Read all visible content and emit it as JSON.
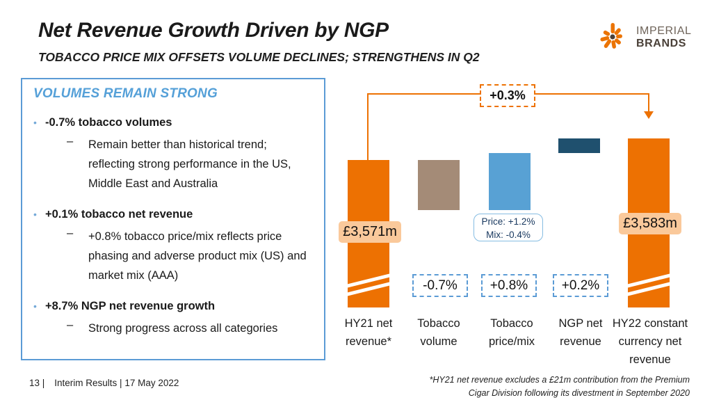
{
  "slide": {
    "title": "Net Revenue Growth Driven by NGP",
    "subtitle": "TOBACCO PRICE MIX OFFSETS VOLUME DECLINES; STRENGTHENS IN Q2"
  },
  "logo": {
    "line1": "IMPERIAL",
    "line2": "BRANDS",
    "icon_color": "#eb7405",
    "dot_color": "#4a4038"
  },
  "left_panel": {
    "heading": "VOLUMES REMAIN STRONG",
    "detail_dash": "–",
    "bullets": [
      {
        "headline": "-0.7% tobacco volumes",
        "detail": "Remain better than historical trend; reflecting strong performance in the US, Middle East and Australia"
      },
      {
        "headline": "+0.1% tobacco net revenue",
        "detail": "+0.8% tobacco price/mix reflects price phasing and adverse product mix (US) and market mix (AAA)"
      },
      {
        "headline": "+8.7% NGP net revenue growth",
        "detail": "Strong progress across all categories"
      }
    ]
  },
  "chart_data": {
    "type": "bar",
    "subtype": "waterfall",
    "title": "",
    "categories": [
      "HY21 net revenue*",
      "Tobacco volume",
      "Tobacco price/mix",
      "NGP net revenue",
      "HY22 constant currency net revenue"
    ],
    "bars": [
      {
        "label": "HY21 net revenue*",
        "role": "total",
        "value_gbp_m": 3571,
        "value_label": "£3,571m",
        "color": "#ed7102",
        "axis_break": true
      },
      {
        "label": "Tobacco volume",
        "role": "decrease",
        "change_pct": -0.7,
        "change_label": "-0.7%",
        "color": "#a48b77"
      },
      {
        "label": "Tobacco price/mix",
        "role": "increase",
        "change_pct": 0.8,
        "change_label": "+0.8%",
        "color": "#58a1d4",
        "annotation": [
          "Price: +1.2%",
          "Mix: -0.4%"
        ]
      },
      {
        "label": "NGP net revenue",
        "role": "increase",
        "change_pct": 0.2,
        "change_label": "+0.2%",
        "color": "#1f506e"
      },
      {
        "label": "HY22 constant currency net revenue",
        "role": "total",
        "value_gbp_m": 3583,
        "value_label": "£3,583m",
        "color": "#ed7102",
        "axis_break": true
      }
    ],
    "total_change_label": "+0.3%",
    "axis_break": true,
    "legend": "none",
    "grid": false,
    "footnote_lines": [
      "*HY21 net revenue excludes a £21m contribution from the Premium",
      "Cigar Division following its divestment in September 2020"
    ]
  },
  "footer": {
    "page_number": "13 |",
    "label": "Interim Results | 17 May 2022"
  },
  "colors": {
    "accent_orange": "#ed7102",
    "accent_blue": "#5b9bd5",
    "value_label_bg": "#fac99b",
    "annotation_text": "#17375e"
  }
}
